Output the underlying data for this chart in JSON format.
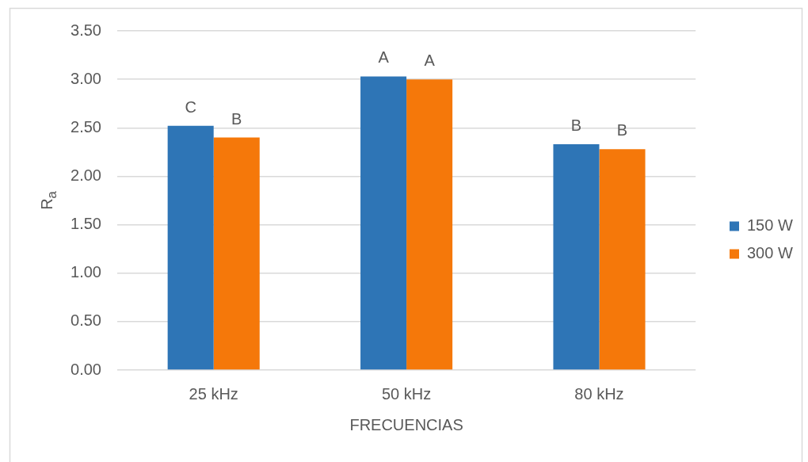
{
  "chart_data": {
    "type": "bar",
    "xlabel": "FRECUENCIAS",
    "ylabel": "R$_{a}$",
    "categories": [
      "25 kHz",
      "50 kHz",
      "80 kHz"
    ],
    "series": [
      {
        "name": "150 W",
        "color": "#2e75b6",
        "values": [
          2.52,
          3.03,
          2.33
        ],
        "value_labels": [
          "C",
          "A",
          "B"
        ]
      },
      {
        "name": "300 W",
        "color": "#f5780a",
        "values": [
          2.4,
          3.0,
          2.28
        ],
        "value_labels": [
          "B",
          "A",
          "B"
        ]
      }
    ],
    "ylim": [
      0,
      3.5
    ],
    "yticks": [
      {
        "value": 0,
        "label": "0.00"
      },
      {
        "value": 0.5,
        "label": "0.50"
      },
      {
        "value": 1,
        "label": "1.00"
      },
      {
        "value": 1.5,
        "label": "1.50"
      },
      {
        "value": 2,
        "label": "2.00"
      },
      {
        "value": 2.5,
        "label": "2.50"
      },
      {
        "value": 3,
        "label": "3.00"
      },
      {
        "value": 3.5,
        "label": "3.50"
      }
    ],
    "grid": "y",
    "legend": "right"
  }
}
